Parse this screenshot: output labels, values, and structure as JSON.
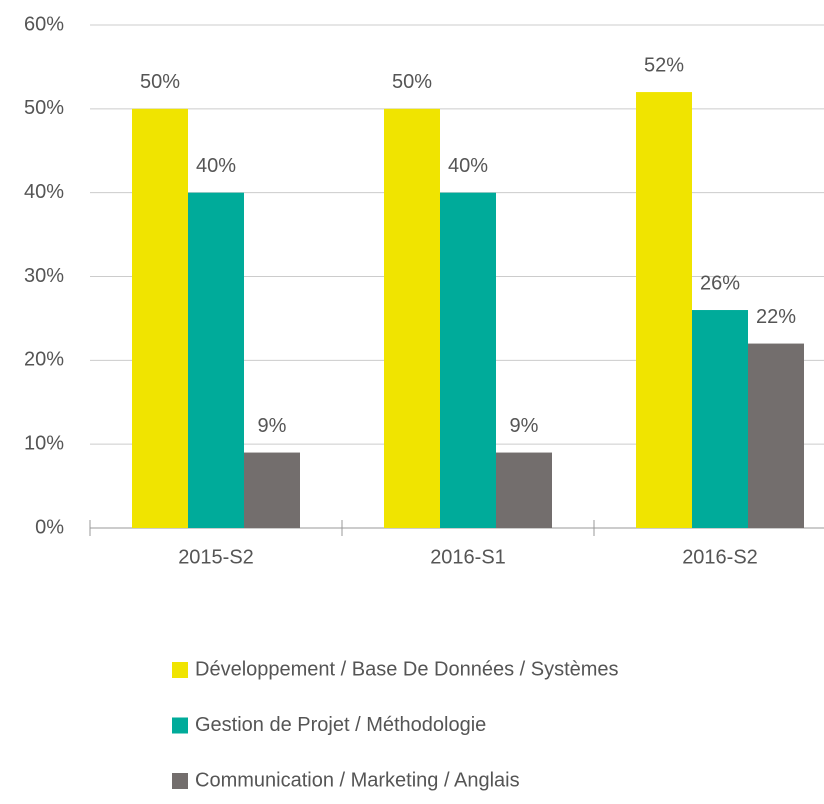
{
  "chart_data": {
    "type": "bar",
    "categories": [
      "2015-S2",
      "2016-S1",
      "2016-S2"
    ],
    "series": [
      {
        "name": "Développement / Base De Données / Systèmes",
        "color": "#f0e400",
        "values": [
          50,
          50,
          52
        ],
        "value_labels": [
          "50%",
          "50%",
          "52%"
        ]
      },
      {
        "name": "Gestion de Projet / Méthodologie",
        "color": "#00ab9a",
        "values": [
          40,
          40,
          26
        ],
        "value_labels": [
          "40%",
          "40%",
          "26%"
        ]
      },
      {
        "name": "Communication / Marketing / Anglais",
        "color": "#736e6d",
        "values": [
          9,
          9,
          22
        ],
        "value_labels": [
          "9%",
          "9%",
          "22%"
        ]
      }
    ],
    "ylim": [
      0,
      60
    ],
    "yticks": [
      {
        "value": 0,
        "label": "0%"
      },
      {
        "value": 10,
        "label": "10%"
      },
      {
        "value": 20,
        "label": "20%"
      },
      {
        "value": 30,
        "label": "30%"
      },
      {
        "value": 40,
        "label": "40%"
      },
      {
        "value": 50,
        "label": "50%"
      },
      {
        "value": 60,
        "label": "60%"
      }
    ],
    "grid": true
  }
}
